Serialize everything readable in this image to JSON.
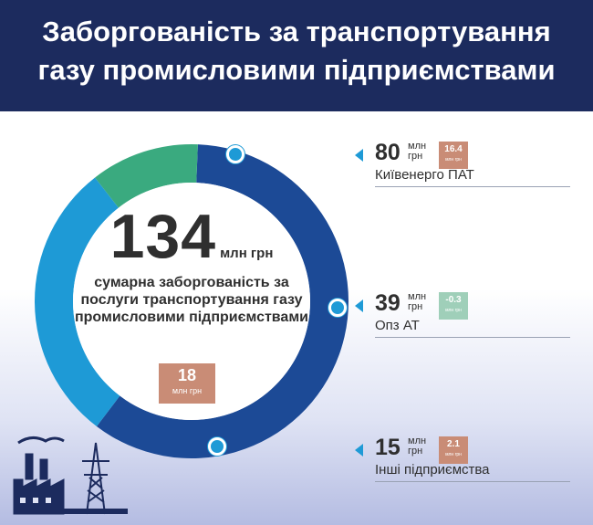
{
  "header": {
    "title_line1": "Заборгованість за транспортування",
    "title_line2": "газу промисловими  підприємствами"
  },
  "total": {
    "value": "134",
    "unit": "млн грн",
    "description": "сумарна заборгованість за послуги транспортування газу промисловими підприємствами",
    "change_value": "18",
    "change_unit": "млн грн"
  },
  "chart_data": {
    "type": "pie",
    "total": 134,
    "unit": "млн грн",
    "categories": [
      "Київенерго ПАТ",
      "Опз АТ",
      "Інші підприємства"
    ],
    "values": [
      80,
      39,
      15
    ],
    "changes": [
      16.4,
      -0.3,
      2.1
    ],
    "colors": [
      "#1c4a96",
      "#1e9ad6",
      "#3aaa7f"
    ]
  },
  "items": [
    {
      "value": "80",
      "unit": "млн грн",
      "change": "16.4",
      "change_unit": "млн грн",
      "name": "Київенерго ПАТ"
    },
    {
      "value": "39",
      "unit": "млн грн",
      "change": "-0.3",
      "change_unit": "млн грн",
      "name": "Опз АТ"
    },
    {
      "value": "15",
      "unit": "млн грн",
      "change": "2.1",
      "change_unit": "млн грн",
      "name": "Інші підприємства"
    }
  ],
  "icons": {
    "arrow": "trend-up-arrow-icon",
    "factory": "factory-icon",
    "pylon": "power-pylon-icon"
  }
}
